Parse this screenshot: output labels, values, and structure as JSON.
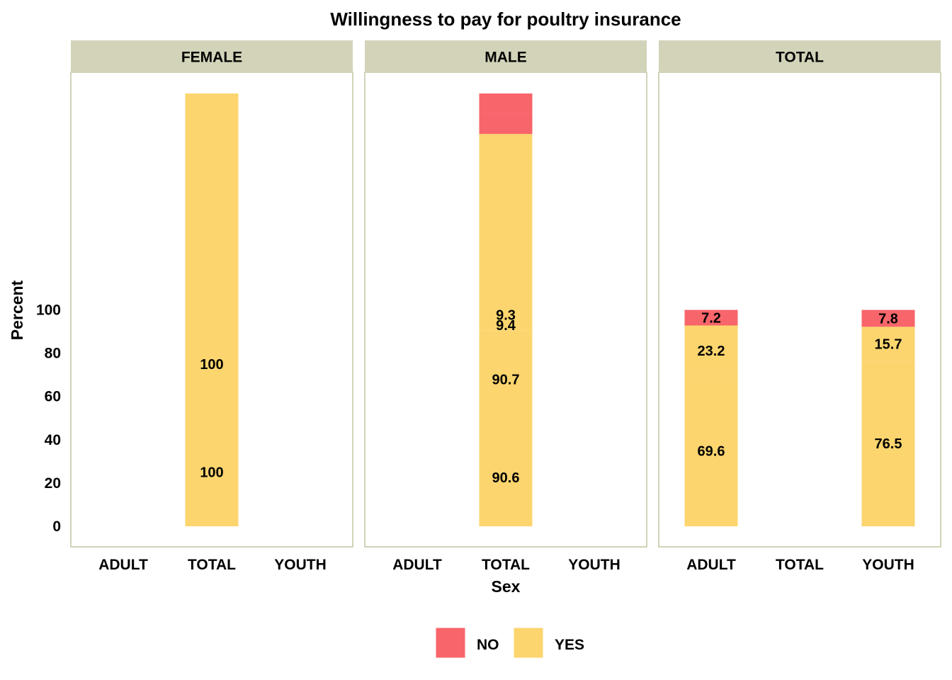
{
  "chart_data": {
    "type": "bar",
    "stacked": true,
    "title": "Willingness to pay for poultry insurance",
    "xlabel": "Sex",
    "ylabel": "Percent",
    "y_ticks": [
      0,
      20,
      40,
      60,
      80,
      100
    ],
    "categories": [
      "ADULT",
      "TOTAL",
      "YOUTH"
    ],
    "facets": [
      {
        "name": "FEMALE",
        "bars": [
          {
            "category": "TOTAL",
            "segments": [
              {
                "series": "YES",
                "value": 100,
                "label": "100"
              },
              {
                "series": "YES",
                "value": 100,
                "label": "100"
              }
            ]
          }
        ]
      },
      {
        "name": "MALE",
        "bars": [
          {
            "category": "TOTAL",
            "segments": [
              {
                "series": "YES",
                "value": 90.6,
                "label": "90.6"
              },
              {
                "series": "YES",
                "value": 90.7,
                "label": "90.7"
              },
              {
                "series": "NO",
                "value": 9.4,
                "label": "9.4"
              },
              {
                "series": "NO",
                "value": 9.3,
                "label": "9.3"
              }
            ]
          }
        ]
      },
      {
        "name": "TOTAL",
        "bars": [
          {
            "category": "ADULT",
            "segments": [
              {
                "series": "YES",
                "value": 69.6,
                "label": "69.6"
              },
              {
                "series": "YES",
                "value": 23.2,
                "label": "23.2"
              },
              {
                "series": "NO",
                "value": 7.2,
                "label": "7.2"
              }
            ]
          },
          {
            "category": "YOUTH",
            "segments": [
              {
                "series": "YES",
                "value": 76.5,
                "label": "76.5"
              },
              {
                "series": "YES",
                "value": 15.7,
                "label": "15.7"
              },
              {
                "series": "NO",
                "value": 7.8,
                "label": "7.8"
              }
            ]
          }
        ]
      }
    ],
    "legend": {
      "placement": "bottom",
      "items": [
        {
          "name": "NO",
          "color": "#F8656A"
        },
        {
          "name": "YES",
          "color": "#FCD56E"
        }
      ]
    },
    "colors": {
      "strip_bg": "#D3D3BA",
      "panel_border": "#D3D3BA"
    }
  }
}
